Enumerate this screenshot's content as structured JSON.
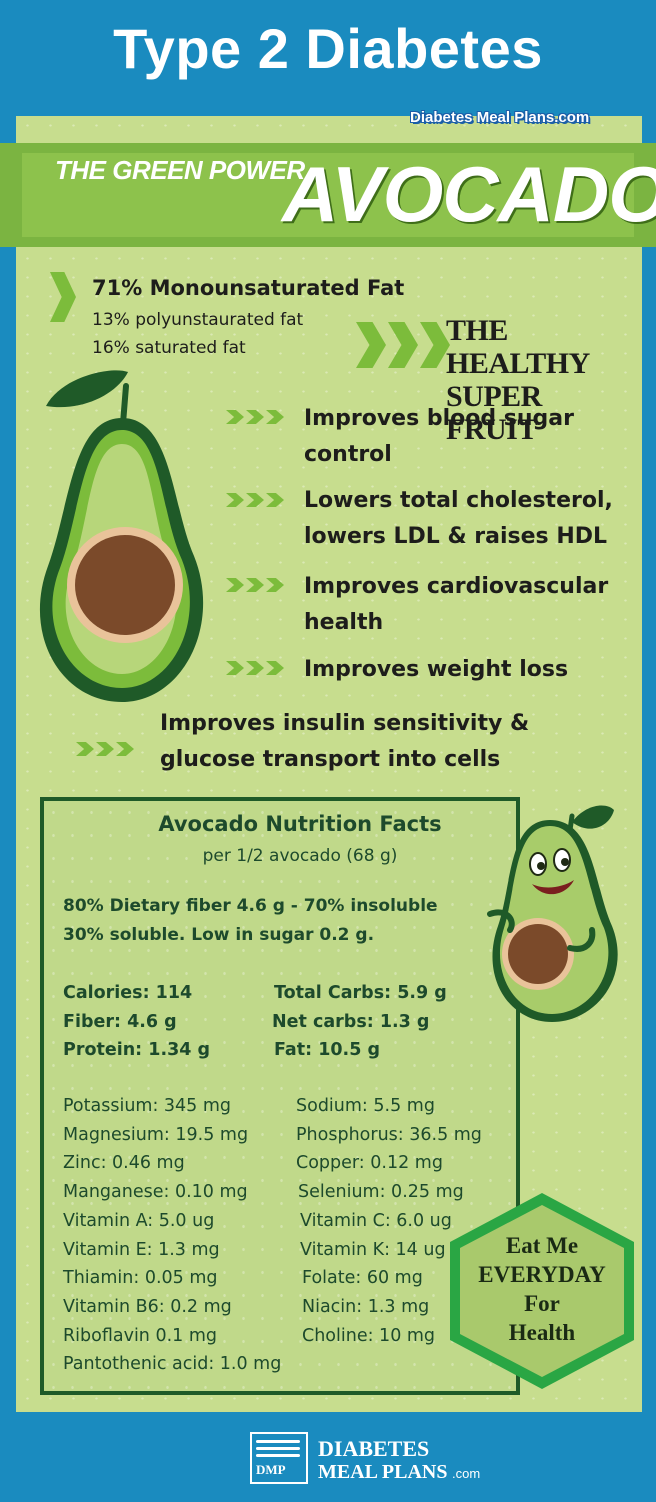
{
  "header": {
    "title": "Type 2 Diabetes"
  },
  "site_tag": "Diabetes Meal Plans.com",
  "banner": {
    "tagline": "THE GREEN POWER",
    "name": "AVOCADO"
  },
  "fats": {
    "main": "71% Monounsaturated Fat",
    "poly": "13% polyunstaurated fat",
    "sat": "16% saturated fat"
  },
  "super_fruit": {
    "line1": "THE HEALTHY",
    "line2": "SUPER FRUIT"
  },
  "benefits": [
    {
      "line1": "Improves blood sugar",
      "line2": "control"
    },
    {
      "line1": "Lowers total cholesterol,",
      "line2": "lowers LDL & raises HDL"
    },
    {
      "line1": "Improves cardiovascular",
      "line2": "health"
    },
    {
      "line1": "Improves weight loss",
      "line2": ""
    },
    {
      "line1": "Improves insulin sensitivity &",
      "line2": "glucose transport into cells"
    }
  ],
  "nutrition": {
    "title": "Avocado Nutrition Facts",
    "serving": "per 1/2 avocado (68 g)",
    "fiber_note1": "80% Dietary fiber 4.6 g - 70% insoluble",
    "fiber_note2": "30% soluble. Low in sugar 0.2 g.",
    "macros": [
      [
        "Calories: 114",
        "Total Carbs: 5.9 g"
      ],
      [
        "Fiber: 4.6  g",
        "Net carbs: 1.3 g"
      ],
      [
        "Protein: 1.34 g",
        "Fat: 10.5 g"
      ]
    ],
    "micros": [
      [
        "Potassium: 345 mg",
        "Sodium: 5.5 mg"
      ],
      [
        "Magnesium: 19.5 mg",
        "Phosphorus: 36.5 mg"
      ],
      [
        "Zinc: 0.46 mg",
        "Copper: 0.12 mg"
      ],
      [
        "Manganese: 0.10 mg",
        "Selenium: 0.25 mg"
      ],
      [
        "Vitamin A: 5.0 ug",
        "Vitamin C: 6.0 ug"
      ],
      [
        "Vitamin E: 1.3 mg",
        "Vitamin K: 14 ug"
      ],
      [
        "Thiamin: 0.05 mg",
        "Folate: 60 mg"
      ],
      [
        "Vitamin B6: 0.2 mg",
        "Niacin: 1.3 mg"
      ],
      [
        "Riboflavin 0.1 mg",
        "Choline: 10 mg"
      ],
      [
        "Pantothenic acid: 1.0 mg",
        ""
      ]
    ]
  },
  "badge": {
    "line1": "Eat Me",
    "line2": "EVERYDAY",
    "line3": "For",
    "line4": "Health"
  },
  "footer": {
    "logo_mark": "DMP",
    "brand1": "DIABETES",
    "brand2": "MEAL PLANS",
    "brand3": ".com"
  },
  "colors": {
    "blue": "#1a8bbf",
    "light_green": "#c7dd8e",
    "banner_green": "#8dc24c",
    "dark_green": "#1f5a28",
    "chevron": "#7cbc3b"
  }
}
